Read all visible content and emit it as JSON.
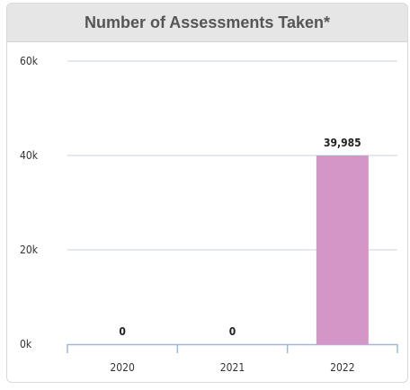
{
  "chart_data": {
    "type": "bar",
    "title": "Number of Assessments Taken*",
    "categories": [
      "2020",
      "2021",
      "2022"
    ],
    "values": [
      0,
      0,
      39985
    ],
    "data_labels": [
      "0",
      "0",
      "39,985"
    ],
    "ylim": [
      0,
      60000
    ],
    "yticks": [
      0,
      20000,
      40000,
      60000
    ],
    "ytick_labels": [
      "0k",
      "20k",
      "40k",
      "60k"
    ],
    "xlabel": "",
    "ylabel": "",
    "grid": true,
    "legend": "none",
    "colors": {
      "bar": "#d496c6",
      "grid": "#c8d2e0",
      "axis": "#9db8dc",
      "header_bg": "#e6e6e6"
    }
  }
}
